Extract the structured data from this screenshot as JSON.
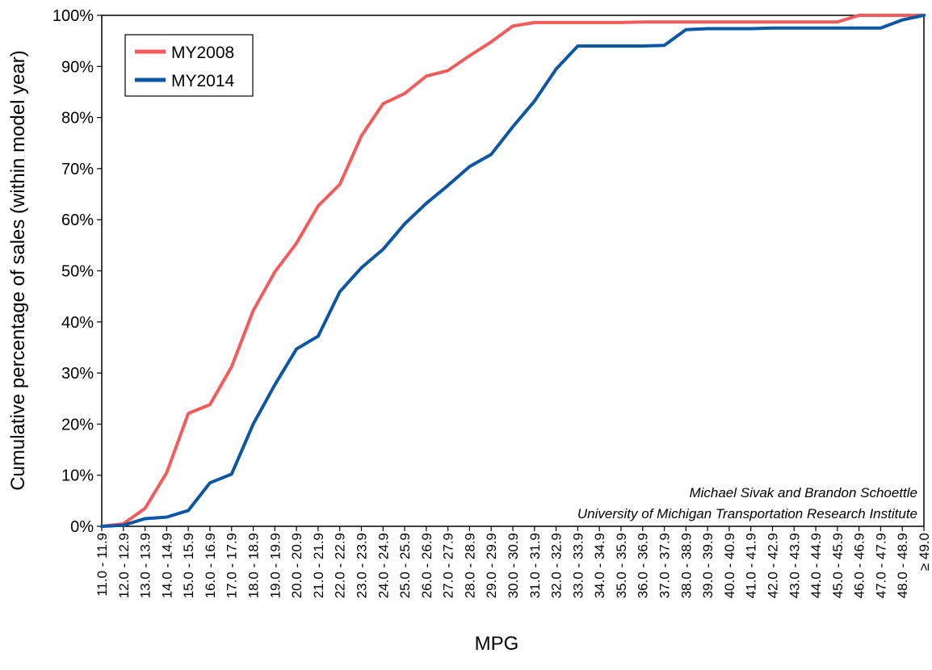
{
  "chart_data": {
    "type": "line",
    "xlabel": "MPG",
    "ylabel": "Cumulative percentage of sales (within model year)",
    "ylim": [
      0,
      100
    ],
    "y_ticks": [
      "0%",
      "10%",
      "20%",
      "30%",
      "40%",
      "50%",
      "60%",
      "70%",
      "80%",
      "90%",
      "100%"
    ],
    "grid": false,
    "legend_position": "top-left",
    "categories": [
      "11.0 - 11.9",
      "12.0 - 12.9",
      "13.0 - 13.9",
      "14.0 - 14.9",
      "15.0 - 15.9",
      "16.0 - 16.9",
      "17.0 - 17.9",
      "18.0 - 18.9",
      "19.0 - 19.9",
      "20.0 - 20.9",
      "21.0 - 21.9",
      "22.0 - 22.9",
      "23.0 - 23.9",
      "24.0 - 24.9",
      "25.0 - 25.9",
      "26.0 - 26.9",
      "27.0 - 27.9",
      "28.0 - 28.9",
      "29.0 - 29.9",
      "30.0 - 30.9",
      "31.0 - 31.9",
      "32.0 - 32.9",
      "33.0 - 33.9",
      "34.0 - 34.9",
      "35.0 - 35.9",
      "36.0 - 36.9",
      "37.0 - 37.9",
      "38.0 - 38.9",
      "39.0 - 39.9",
      "40.0 - 40.9",
      "41.0 - 41.9",
      "42.0 - 42.9",
      "43.0 - 43.9",
      "44.0 - 44.9",
      "45.0 - 45.9",
      "46.0 - 46.9",
      "47.0 - 47.9",
      "48.0 - 48.9",
      "≥ 49.0"
    ],
    "series": [
      {
        "name": "MY2008",
        "color": "#f45b5b",
        "values": [
          0,
          0.5,
          3.5,
          10.5,
          22.1,
          23.8,
          31.2,
          42.2,
          49.8,
          55.4,
          62.7,
          66.9,
          76.4,
          82.7,
          84.7,
          88.1,
          89.2,
          92.1,
          94.8,
          97.9,
          98.6,
          98.6,
          98.6,
          98.6,
          98.6,
          98.7,
          98.7,
          98.7,
          98.7,
          98.7,
          98.7,
          98.7,
          98.7,
          98.7,
          98.7,
          100,
          100,
          100,
          100
        ]
      },
      {
        "name": "MY2014",
        "color": "#0b57a4",
        "values": [
          0,
          0.2,
          1.5,
          1.8,
          3.1,
          8.5,
          10.2,
          20,
          27.7,
          34.7,
          37.2,
          45.9,
          50.6,
          54.2,
          59.2,
          63.2,
          66.7,
          70.4,
          72.8,
          78.2,
          83.2,
          89.5,
          94,
          94,
          94,
          94,
          94.1,
          97.2,
          97.4,
          97.4,
          97.4,
          97.5,
          97.5,
          97.5,
          97.5,
          97.5,
          97.5,
          99.1,
          100
        ]
      }
    ],
    "annotations": [
      "Michael Sivak and Brandon Schoettle",
      "University of Michigan Transportation Research Institute"
    ]
  }
}
